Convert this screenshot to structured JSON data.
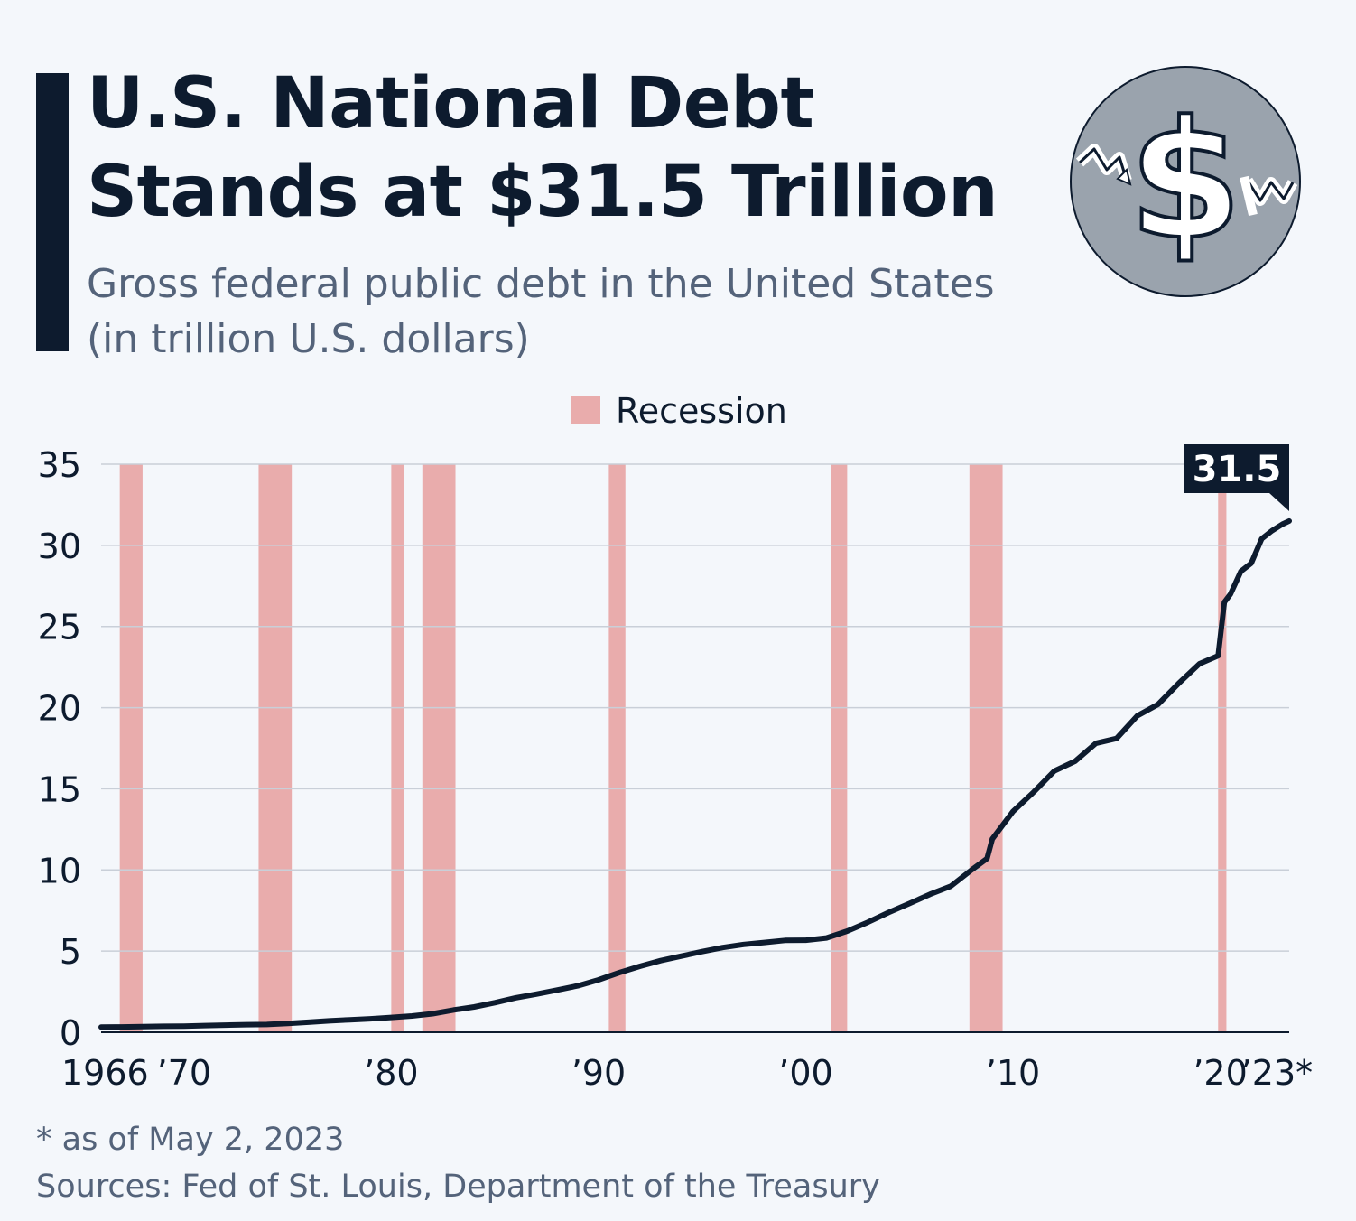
{
  "header": {
    "title_line1": "U.S. National Debt",
    "title_line2": "Stands at $31.5 Trillion",
    "subtitle_line1": "Gross federal public debt in the United States",
    "subtitle_line2": "(in trillion U.S. dollars)"
  },
  "logo": {
    "icon": "dollar-coin-icon"
  },
  "colors": {
    "line": "#0d1b2e",
    "recession": "#e9acac",
    "grid": "#c9cfd8",
    "axis_text": "#0d1b2e",
    "callout_bg": "#0d1b2e",
    "callout_text": "#ffffff"
  },
  "chart_data": {
    "type": "line",
    "title": "U.S. National Debt Stands at $31.5 Trillion",
    "ylabel": "in trillion U.S. dollars",
    "ylim": [
      0,
      35
    ],
    "yticks": [
      0,
      5,
      10,
      15,
      20,
      25,
      30,
      35
    ],
    "xlim": [
      1966,
      2023.33
    ],
    "xticks": [
      {
        "value": 1966,
        "label": "1966"
      },
      {
        "value": 1970,
        "label": "’70"
      },
      {
        "value": 1980,
        "label": "’80"
      },
      {
        "value": 1990,
        "label": "’90"
      },
      {
        "value": 2000,
        "label": "’00"
      },
      {
        "value": 2010,
        "label": "’10"
      },
      {
        "value": 2020,
        "label": "’20"
      },
      {
        "value": 2023,
        "label": "’23*"
      }
    ],
    "legend": {
      "label": "Recession",
      "position": "top-center"
    },
    "recessions": [
      [
        1966.9,
        1968.0
      ],
      [
        1973.6,
        1975.2
      ],
      [
        1980.0,
        1980.6
      ],
      [
        1981.5,
        1983.1
      ],
      [
        1990.5,
        1991.3
      ],
      [
        2001.2,
        2002.0
      ],
      [
        2007.9,
        2009.5
      ],
      [
        2019.9,
        2020.3
      ]
    ],
    "series": [
      {
        "name": "Gross federal public debt",
        "x": [
          1966,
          1967,
          1968,
          1969,
          1970,
          1971,
          1972,
          1973,
          1974,
          1975,
          1976,
          1977,
          1978,
          1979,
          1980,
          1981,
          1982,
          1983,
          1984,
          1985,
          1986,
          1987,
          1988,
          1989,
          1990,
          1991,
          1992,
          1993,
          1994,
          1995,
          1996,
          1997,
          1998,
          1999,
          2000,
          2001,
          2002,
          2003,
          2004,
          2005,
          2006,
          2007,
          2008,
          2008.75,
          2009,
          2010,
          2011,
          2012,
          2013,
          2014,
          2015,
          2016,
          2017,
          2018,
          2019,
          2019.9,
          2020.2,
          2020.5,
          2021,
          2021.5,
          2022,
          2022.5,
          2023,
          2023.33
        ],
        "values": [
          0.32,
          0.33,
          0.35,
          0.37,
          0.38,
          0.41,
          0.44,
          0.47,
          0.48,
          0.54,
          0.62,
          0.7,
          0.77,
          0.83,
          0.91,
          1.0,
          1.14,
          1.37,
          1.56,
          1.82,
          2.12,
          2.35,
          2.6,
          2.86,
          3.23,
          3.67,
          4.06,
          4.41,
          4.69,
          4.97,
          5.22,
          5.41,
          5.53,
          5.66,
          5.67,
          5.81,
          6.23,
          6.78,
          7.38,
          7.93,
          8.5,
          9.0,
          10.0,
          10.7,
          11.9,
          13.6,
          14.8,
          16.1,
          16.7,
          17.8,
          18.1,
          19.5,
          20.2,
          21.5,
          22.7,
          23.2,
          26.5,
          27.0,
          28.4,
          28.9,
          30.4,
          30.9,
          31.3,
          31.5
        ]
      }
    ],
    "annotation": {
      "label": "31.5",
      "x": 2023.33,
      "y": 31.5
    }
  },
  "footer": {
    "note": "* as of May 2, 2023",
    "sources": "Sources: Fed of St. Louis, Department of the Treasury"
  }
}
